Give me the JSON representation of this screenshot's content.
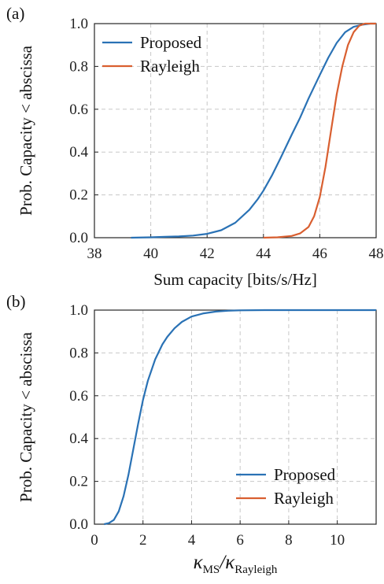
{
  "panels": [
    "(a)",
    "(b)"
  ],
  "chart_data": [
    {
      "type": "line",
      "panel": "(a)",
      "xlabel": "Sum capacity [bits/s/Hz]",
      "ylabel": "Prob. Capacity < abscissa",
      "xlim": [
        38,
        48
      ],
      "ylim": [
        0,
        1
      ],
      "xticks": [
        38,
        40,
        42,
        44,
        46,
        48
      ],
      "yticks": [
        "0.0",
        "0.2",
        "0.4",
        "0.6",
        "0.8",
        "1.0"
      ],
      "grid": true,
      "legend": "top-left",
      "series": [
        {
          "name": "Proposed",
          "color": "#2a72b5",
          "x": [
            39.3,
            40.0,
            40.5,
            41.0,
            41.5,
            42.0,
            42.5,
            43.0,
            43.5,
            43.8,
            44.0,
            44.3,
            44.6,
            45.0,
            45.3,
            45.6,
            46.0,
            46.3,
            46.6,
            46.9,
            47.2,
            47.5,
            47.8,
            48.0
          ],
          "y": [
            0.0,
            0.002,
            0.004,
            0.006,
            0.01,
            0.018,
            0.035,
            0.07,
            0.13,
            0.18,
            0.22,
            0.29,
            0.37,
            0.48,
            0.56,
            0.65,
            0.76,
            0.84,
            0.91,
            0.96,
            0.985,
            0.995,
            1.0,
            1.0
          ]
        },
        {
          "name": "Rayleigh",
          "color": "#d95f30",
          "x": [
            44.0,
            44.5,
            45.0,
            45.3,
            45.6,
            45.8,
            46.0,
            46.2,
            46.4,
            46.6,
            46.8,
            47.0,
            47.2,
            47.4,
            47.6,
            47.8,
            48.0
          ],
          "y": [
            0.0,
            0.002,
            0.008,
            0.02,
            0.05,
            0.1,
            0.19,
            0.33,
            0.5,
            0.67,
            0.8,
            0.9,
            0.96,
            0.99,
            1.0,
            1.0,
            1.0
          ]
        }
      ]
    },
    {
      "type": "line",
      "panel": "(b)",
      "xlabel_main": "κ",
      "xlabel_sub1": "MS",
      "xlabel_sep": "/κ",
      "xlabel_sub2": "Rayleigh",
      "ylabel": "Prob. Capacity < abscissa",
      "xlim": [
        0,
        11.6
      ],
      "ylim": [
        0,
        1
      ],
      "xticks": [
        0,
        2,
        4,
        6,
        8,
        10
      ],
      "yticks": [
        "0.0",
        "0.2",
        "0.4",
        "0.6",
        "0.8",
        "1.0"
      ],
      "grid": true,
      "legend": "bottom-right",
      "series": [
        {
          "name": "Proposed",
          "color": "#2a72b5",
          "x": [
            0.4,
            0.6,
            0.8,
            1.0,
            1.2,
            1.4,
            1.6,
            1.8,
            2.0,
            2.2,
            2.5,
            2.8,
            3.0,
            3.3,
            3.6,
            4.0,
            4.5,
            5.0,
            5.5,
            6.0,
            7.0,
            8.0,
            10.0,
            11.6
          ],
          "y": [
            0.0,
            0.005,
            0.02,
            0.06,
            0.13,
            0.23,
            0.35,
            0.47,
            0.58,
            0.67,
            0.77,
            0.84,
            0.875,
            0.915,
            0.945,
            0.97,
            0.985,
            0.993,
            0.997,
            0.999,
            1.0,
            1.0,
            1.0,
            1.0
          ]
        },
        {
          "name": "Rayleigh",
          "color": "#d95f30",
          "x": [],
          "y": []
        }
      ]
    }
  ]
}
